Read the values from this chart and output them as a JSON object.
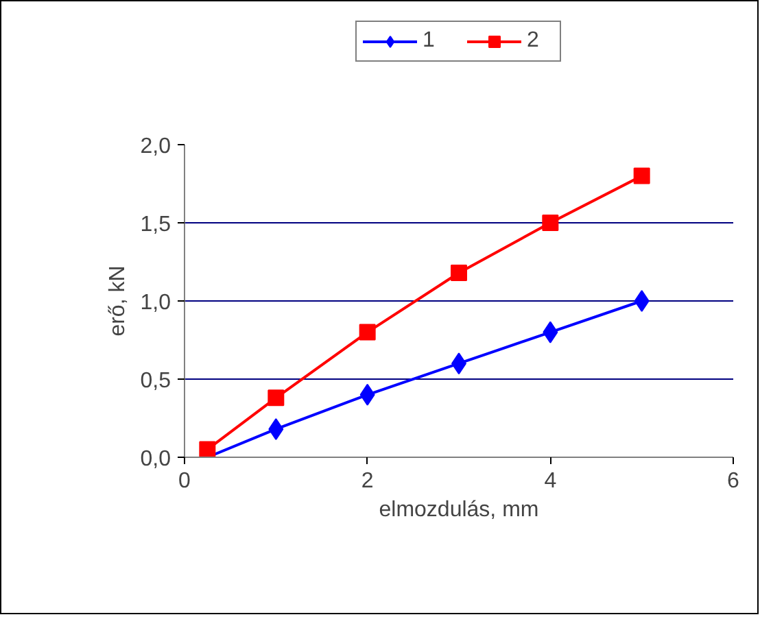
{
  "chart_data": {
    "type": "line",
    "xlabel": "elmozdulás, mm",
    "ylabel": "erő, kN",
    "xlim": [
      0,
      6
    ],
    "xticks": [
      0,
      2,
      4,
      6
    ],
    "ylim": [
      0,
      2
    ],
    "yticks": [
      {
        "value": 0,
        "label": "0,0"
      },
      {
        "value": 0.5,
        "label": "0,5"
      },
      {
        "value": 1,
        "label": "1,0"
      },
      {
        "value": 1.5,
        "label": "1,5"
      },
      {
        "value": 2,
        "label": "2,0"
      }
    ],
    "grid": "y",
    "legend": "top",
    "line_style": "solid",
    "series": [
      {
        "name": "1",
        "color": "#0000ff",
        "marker": "diamond",
        "x": [
          0.25,
          1,
          2,
          3,
          4,
          5
        ],
        "values": [
          0,
          0.18,
          0.4,
          0.6,
          0.8,
          1.0
        ]
      },
      {
        "name": "2",
        "color": "#ff0000",
        "marker": "square",
        "x": [
          0.25,
          1,
          2,
          3,
          4,
          5
        ],
        "values": [
          0.05,
          0.38,
          0.8,
          1.18,
          1.5,
          1.8
        ]
      }
    ]
  }
}
